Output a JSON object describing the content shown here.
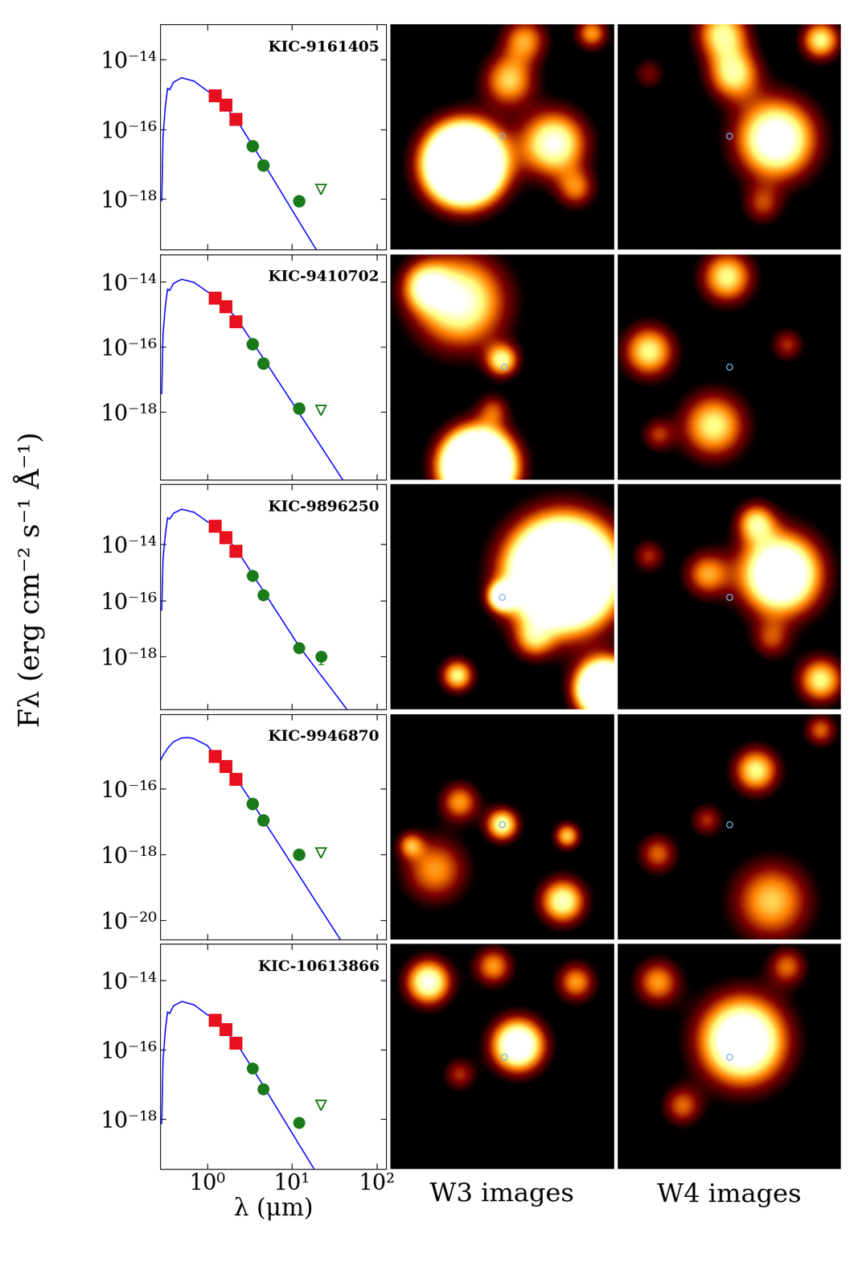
{
  "chart_data": [
    {
      "type": "scatter",
      "title": "KIC-9161405",
      "log": true,
      "tick_labels": "y",
      "xlim": [
        0.28,
        130
      ],
      "ylim": [
        3.5e-20,
        1e-13
      ],
      "xticks": [
        {
          "value": 1,
          "label": "10⁰"
        },
        {
          "value": 10,
          "label": "10¹"
        },
        {
          "value": 100,
          "label": "10²"
        }
      ],
      "yticks": [
        {
          "value": 1e-18,
          "label": "10⁻¹⁸"
        },
        {
          "value": 1e-16,
          "label": "10⁻¹⁶"
        },
        {
          "value": 1e-14,
          "label": "10⁻¹⁴"
        }
      ],
      "series": [
        {
          "type": "line",
          "color": "#0000ff",
          "x": [
            0.29,
            0.3,
            0.32,
            0.34,
            0.36,
            0.4,
            0.5,
            0.7,
            1.0,
            1.25,
            2.2,
            3.4,
            4.6,
            12,
            20,
            30,
            60
          ],
          "values": [
            9e-19,
            6e-17,
            4.5e-16,
            1.5e-15,
            1.35e-15,
            2.25e-15,
            3e-15,
            2.4e-15,
            1.26e-15,
            9e-16,
            1.95e-16,
            3.6e-17,
            1.11e-17,
            2.4e-19,
            3.15e-20,
            6.3e-21,
            3.9e-22
          ]
        },
        {
          "type": "scatter",
          "color": "#e8101e",
          "marker": "square",
          "x": [
            1.25,
            1.65,
            2.2
          ],
          "values": [
            9e-16,
            5e-16,
            1.9e-16
          ]
        },
        {
          "type": "scatter",
          "color": "#1a7a1a",
          "marker": "circle",
          "x": [
            3.4,
            4.6,
            12
          ],
          "values": [
            3.4e-17,
            9.3e-18,
            9e-19
          ]
        },
        {
          "type": "scatter",
          "color": "#1a7a1a",
          "marker": "open_triangle",
          "x": [
            22
          ],
          "values": [
            1.9e-18
          ]
        }
      ]
    },
    {
      "type": "scatter",
      "title": "KIC-9410702",
      "log": true,
      "tick_labels": "y",
      "xlim": [
        0.28,
        130
      ],
      "ylim": [
        8e-21,
        7e-14
      ],
      "xticks": [
        {
          "value": 1,
          "label": "10⁰"
        },
        {
          "value": 10,
          "label": "10¹"
        },
        {
          "value": 100,
          "label": "10²"
        }
      ],
      "yticks": [
        {
          "value": 1e-18,
          "label": "10⁻¹⁸"
        },
        {
          "value": 1e-16,
          "label": "10⁻¹⁶"
        },
        {
          "value": 1e-14,
          "label": "10⁻¹⁴"
        }
      ],
      "series": [
        {
          "type": "line",
          "color": "#0000ff",
          "x": [
            0.29,
            0.3,
            0.32,
            0.34,
            0.36,
            0.4,
            0.5,
            0.7,
            1.0,
            1.25,
            2.2,
            3.4,
            4.6,
            12,
            20,
            30,
            60
          ],
          "values": [
            3.6e-18,
            2.4e-16,
            1.8e-15,
            6e-15,
            5.4e-15,
            9e-15,
            1.2e-14,
            9.6e-15,
            5e-15,
            3.6e-15,
            7.8e-16,
            1.44e-16,
            4.4e-17,
            9.6e-19,
            1.26e-19,
            2.5e-20,
            1.56e-21
          ]
        },
        {
          "type": "scatter",
          "color": "#e8101e",
          "marker": "square",
          "x": [
            1.25,
            1.65,
            2.2
          ],
          "values": [
            3.1e-15,
            1.7e-15,
            6e-16
          ]
        },
        {
          "type": "scatter",
          "color": "#1a7a1a",
          "marker": "circle",
          "x": [
            3.4,
            4.6,
            12
          ],
          "values": [
            1.2e-16,
            3.1e-17,
            1.3e-18
          ]
        },
        {
          "type": "scatter",
          "color": "#1a7a1a",
          "marker": "open_triangle",
          "x": [
            22
          ],
          "values": [
            1.1e-18
          ]
        }
      ]
    },
    {
      "type": "scatter",
      "title": "KIC-9896250",
      "log": true,
      "tick_labels": "y",
      "xlim": [
        0.28,
        130
      ],
      "ylim": [
        1.3e-20,
        1.4e-12
      ],
      "xticks": [
        {
          "value": 1,
          "label": "10⁰"
        },
        {
          "value": 10,
          "label": "10¹"
        },
        {
          "value": 100,
          "label": "10²"
        }
      ],
      "yticks": [
        {
          "value": 1e-18,
          "label": "10⁻¹⁸"
        },
        {
          "value": 1e-16,
          "label": "10⁻¹⁶"
        },
        {
          "value": 1e-14,
          "label": "10⁻¹⁴"
        }
      ],
      "series": [
        {
          "type": "line",
          "color": "#0000ff",
          "x": [
            0.29,
            0.3,
            0.32,
            0.34,
            0.36,
            0.4,
            0.5,
            0.7,
            1.0,
            1.25,
            2.2,
            3.4,
            4.6,
            12,
            20,
            30,
            60
          ],
          "values": [
            4.5e-17,
            3e-15,
            2.3e-14,
            9e-14,
            8e-14,
            1.3e-13,
            1.8e-13,
            1.4e-13,
            6.5e-14,
            4.6e-14,
            7e-15,
            9e-16,
            2.2e-16,
            2.5e-18,
            3.2e-19,
            6.5e-20,
            4e-21
          ]
        },
        {
          "type": "scatter",
          "color": "#e8101e",
          "marker": "square",
          "x": [
            1.25,
            1.65,
            2.2
          ],
          "values": [
            4.4e-14,
            1.7e-14,
            5.8e-15
          ]
        },
        {
          "type": "scatter",
          "color": "#1a7a1a",
          "marker": "circle",
          "x": [
            3.4,
            4.6,
            12,
            22
          ],
          "values": [
            7.6e-16,
            1.6e-16,
            2.1e-18,
            1e-18
          ],
          "errors": [
            0,
            0,
            0,
            4.5e-19
          ]
        }
      ]
    },
    {
      "type": "scatter",
      "title": "KIC-9946870",
      "log": true,
      "tick_labels": "y",
      "xlim": [
        0.28,
        130
      ],
      "ylim": [
        2.6e-21,
        1.8e-14
      ],
      "xticks": [
        {
          "value": 1,
          "label": "10⁰"
        },
        {
          "value": 10,
          "label": "10¹"
        },
        {
          "value": 100,
          "label": "10²"
        }
      ],
      "yticks": [
        {
          "value": 1e-20,
          "label": "10⁻²⁰"
        },
        {
          "value": 1e-18,
          "label": "10⁻¹⁸"
        },
        {
          "value": 1e-16,
          "label": "10⁻¹⁶"
        }
      ],
      "series": [
        {
          "type": "line",
          "color": "#0000ff",
          "x": [
            0.28,
            0.3,
            0.35,
            0.4,
            0.5,
            0.6,
            0.7,
            1.0,
            1.25,
            1.65,
            2.2,
            3.4,
            4.6,
            12,
            20,
            30,
            60
          ],
          "values": [
            7e-16,
            1e-15,
            1.8e-15,
            2.6e-15,
            3.4e-15,
            3.5e-15,
            3.2e-15,
            2e-15,
            1e-15,
            5e-16,
            2e-16,
            3.7e-17,
            1.1e-17,
            2.4e-19,
            3.1e-20,
            6.2e-21,
            3.9e-22
          ]
        },
        {
          "type": "scatter",
          "color": "#e8101e",
          "marker": "square",
          "x": [
            1.25,
            1.65,
            2.2
          ],
          "values": [
            9.5e-16,
            4.7e-16,
            1.9e-16
          ]
        },
        {
          "type": "scatter",
          "color": "#1a7a1a",
          "marker": "circle",
          "x": [
            3.4,
            4.6,
            12
          ],
          "values": [
            3.5e-17,
            1.1e-17,
            1e-18
          ]
        },
        {
          "type": "scatter",
          "color": "#1a7a1a",
          "marker": "open_triangle",
          "x": [
            22
          ],
          "values": [
            1.1e-18
          ]
        }
      ]
    },
    {
      "type": "scatter",
      "title": "KIC-10613866",
      "log": true,
      "x_label": "λ (μm)",
      "xlim": [
        0.28,
        130
      ],
      "ylim": [
        3.5e-20,
        1.1e-13
      ],
      "xticks": [
        {
          "value": 1,
          "label": "10⁰"
        },
        {
          "value": 10,
          "label": "10¹"
        },
        {
          "value": 100,
          "label": "10²"
        }
      ],
      "yticks": [
        {
          "value": 1e-18,
          "label": "10⁻¹⁸"
        },
        {
          "value": 1e-16,
          "label": "10⁻¹⁶"
        },
        {
          "value": 1e-14,
          "label": "10⁻¹⁴"
        }
      ],
      "series": [
        {
          "type": "line",
          "color": "#0000ff",
          "x": [
            0.29,
            0.3,
            0.32,
            0.34,
            0.36,
            0.4,
            0.5,
            0.7,
            1.0,
            1.25,
            2.2,
            3.4,
            4.6,
            12,
            20,
            30,
            60
          ],
          "values": [
            7.2e-19,
            4.8e-17,
            3.6e-16,
            1.2e-15,
            1.08e-15,
            1.8e-15,
            2.4e-15,
            1.92e-15,
            1e-15,
            7.2e-16,
            1.56e-16,
            2.9e-17,
            8.9e-18,
            1.9e-19,
            2.5e-20,
            5e-21,
            3.1e-22
          ]
        },
        {
          "type": "scatter",
          "color": "#e8101e",
          "marker": "square",
          "x": [
            1.25,
            1.65,
            2.2
          ],
          "values": [
            6.8e-16,
            3.7e-16,
            1.5e-16
          ]
        },
        {
          "type": "scatter",
          "color": "#1a7a1a",
          "marker": "circle",
          "x": [
            3.4,
            4.6,
            12
          ],
          "values": [
            2.8e-17,
            7.3e-18,
            7.6e-19
          ],
          "errors": [
            0,
            0,
            1.5e-19
          ]
        },
        {
          "type": "scatter",
          "color": "#1a7a1a",
          "marker": "open_triangle",
          "x": [
            22
          ],
          "values": [
            2.4e-18
          ]
        }
      ]
    }
  ],
  "y_label": "Fλ (erg cm⁻² s⁻¹ Å⁻¹)",
  "image_labels": [
    "W3 images",
    "W4 images"
  ],
  "images": [
    [
      {
        "target": [
          0.5,
          0.495
        ],
        "sources": [
          [
            0.33,
            0.62,
            0.11,
            3.0
          ],
          [
            0.73,
            0.53,
            0.1,
            1.0
          ],
          [
            0.53,
            0.25,
            0.08,
            0.7
          ],
          [
            0.6,
            0.07,
            0.07,
            0.6
          ],
          [
            0.83,
            0.73,
            0.06,
            0.5
          ],
          [
            0.9,
            0.04,
            0.05,
            0.6
          ]
        ]
      },
      {
        "target": [
          0.5,
          0.495
        ],
        "sources": [
          [
            0.71,
            0.51,
            0.12,
            1.2
          ],
          [
            0.52,
            0.22,
            0.08,
            0.8
          ],
          [
            0.47,
            0.04,
            0.08,
            0.8
          ],
          [
            0.91,
            0.07,
            0.06,
            0.8
          ],
          [
            0.65,
            0.8,
            0.06,
            0.4
          ],
          [
            0.14,
            0.22,
            0.05,
            0.3
          ]
        ]
      }
    ],
    [
      {
        "target": [
          0.51,
          0.5
        ],
        "sources": [
          [
            0.31,
            0.21,
            0.14,
            1.0
          ],
          [
            0.39,
            0.94,
            0.1,
            3.0
          ],
          [
            0.5,
            0.47,
            0.05,
            0.8
          ],
          [
            0.16,
            0.14,
            0.07,
            0.7
          ],
          [
            0.46,
            0.69,
            0.05,
            0.4
          ]
        ]
      },
      {
        "target": [
          0.5,
          0.5
        ],
        "sources": [
          [
            0.49,
            0.1,
            0.08,
            0.8
          ],
          [
            0.14,
            0.43,
            0.08,
            0.8
          ],
          [
            0.43,
            0.76,
            0.1,
            0.8
          ],
          [
            0.76,
            0.4,
            0.05,
            0.4
          ],
          [
            0.18,
            0.8,
            0.05,
            0.4
          ]
        ]
      }
    ],
    [
      {
        "target": [
          0.5,
          0.5
        ],
        "sources": [
          [
            0.77,
            0.4,
            0.15,
            3.0
          ],
          [
            0.5,
            0.5,
            0.04,
            1.2
          ],
          [
            0.3,
            0.85,
            0.05,
            0.8
          ],
          [
            0.96,
            0.91,
            0.08,
            2.5
          ],
          [
            0.64,
            0.69,
            0.06,
            0.5
          ]
        ]
      },
      {
        "target": [
          0.5,
          0.5
        ],
        "sources": [
          [
            0.73,
            0.4,
            0.12,
            1.5
          ],
          [
            0.62,
            0.17,
            0.06,
            0.7
          ],
          [
            0.4,
            0.4,
            0.07,
            0.6
          ],
          [
            0.91,
            0.87,
            0.07,
            0.8
          ],
          [
            0.14,
            0.32,
            0.05,
            0.4
          ],
          [
            0.69,
            0.69,
            0.06,
            0.4
          ]
        ]
      }
    ],
    [
      {
        "target": [
          0.5,
          0.49
        ],
        "sources": [
          [
            0.5,
            0.49,
            0.05,
            0.9
          ],
          [
            0.77,
            0.83,
            0.07,
            0.9
          ],
          [
            0.2,
            0.69,
            0.1,
            0.6
          ],
          [
            0.79,
            0.54,
            0.04,
            0.7
          ],
          [
            0.31,
            0.39,
            0.06,
            0.6
          ],
          [
            0.09,
            0.58,
            0.04,
            0.5
          ]
        ]
      },
      {
        "target": [
          0.5,
          0.49
        ],
        "sources": [
          [
            0.62,
            0.25,
            0.07,
            0.8
          ],
          [
            0.69,
            0.83,
            0.12,
            0.7
          ],
          [
            0.18,
            0.62,
            0.06,
            0.5
          ],
          [
            0.4,
            0.47,
            0.05,
            0.4
          ],
          [
            0.91,
            0.07,
            0.05,
            0.5
          ]
        ]
      }
    ],
    [
      {
        "target": [
          0.51,
          0.5
        ],
        "sources": [
          [
            0.57,
            0.45,
            0.08,
            1.3
          ],
          [
            0.17,
            0.17,
            0.07,
            1.0
          ],
          [
            0.46,
            0.1,
            0.06,
            0.6
          ],
          [
            0.83,
            0.17,
            0.06,
            0.6
          ],
          [
            0.31,
            0.58,
            0.05,
            0.4
          ]
        ]
      },
      {
        "target": [
          0.5,
          0.5
        ],
        "sources": [
          [
            0.56,
            0.43,
            0.13,
            1.4
          ],
          [
            0.18,
            0.17,
            0.07,
            0.6
          ],
          [
            0.76,
            0.1,
            0.06,
            0.5
          ],
          [
            0.29,
            0.72,
            0.06,
            0.5
          ]
        ]
      }
    ]
  ]
}
